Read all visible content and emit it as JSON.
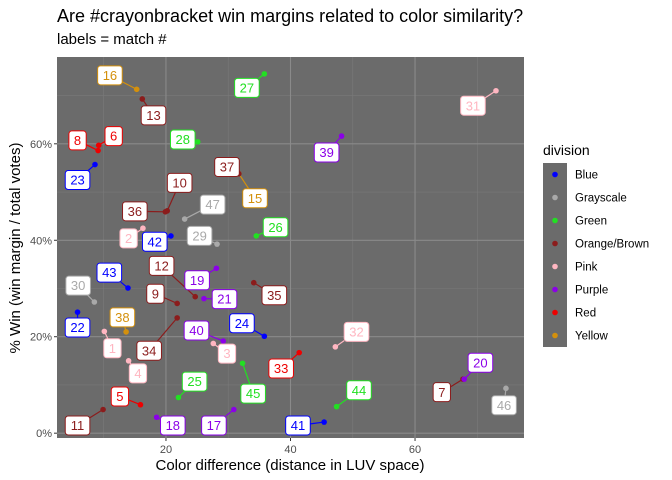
{
  "chart_data": {
    "type": "scatter",
    "title": "Are #crayonbracket win margins related to color similarity?",
    "subtitle": "labels = match #",
    "xlabel": "Color difference (distance in LUV space)",
    "ylabel": "% Win (win margin / total votes)",
    "xlim": [
      2.5,
      77.5
    ],
    "ylim": [
      -1,
      78
    ],
    "x_ticks": [
      20,
      40,
      60
    ],
    "x_tick_labels": [
      "20",
      "40",
      "60"
    ],
    "y_ticks": [
      0,
      20,
      40,
      60
    ],
    "y_tick_labels": [
      "0%",
      "20%",
      "40%",
      "60%"
    ],
    "grid": true,
    "legend": {
      "title": "division",
      "position": "right",
      "items": [
        {
          "name": "Blue",
          "color": "#0000ff"
        },
        {
          "name": "Grayscale",
          "color": "#a9a9a9"
        },
        {
          "name": "Green",
          "color": "#22e022"
        },
        {
          "name": "Orange/Brown",
          "color": "#8b1c1c"
        },
        {
          "name": "Pink",
          "color": "#ffb6c1"
        },
        {
          "name": "Purple",
          "color": "#8b00e8"
        },
        {
          "name": "Red",
          "color": "#ee0000"
        },
        {
          "name": "Yellow",
          "color": "#d4900c"
        }
      ]
    },
    "points": [
      {
        "match": "1",
        "division": "Pink",
        "x": 10.1,
        "y": 21.1,
        "lx": 11.4,
        "ly": 17.6
      },
      {
        "match": "2",
        "division": "Pink",
        "x": 16.3,
        "y": 42.5,
        "lx": 14.0,
        "ly": 40.4
      },
      {
        "match": "3",
        "division": "Pink",
        "x": 27.6,
        "y": 18.6,
        "lx": 29.8,
        "ly": 16.5
      },
      {
        "match": "4",
        "division": "Pink",
        "x": 14.0,
        "y": 15.0,
        "lx": 15.5,
        "ly": 12.4
      },
      {
        "match": "5",
        "division": "Red",
        "x": 15.9,
        "y": 5.9,
        "lx": 12.6,
        "ly": 7.6
      },
      {
        "match": "6",
        "division": "Red",
        "x": 9.2,
        "y": 59.7,
        "lx": 11.6,
        "ly": 61.6
      },
      {
        "match": "7",
        "division": "Orange/Brown",
        "x": 67.7,
        "y": 11.2,
        "lx": 64.3,
        "ly": 8.5
      },
      {
        "match": "8",
        "division": "Red",
        "x": 9.1,
        "y": 58.6,
        "lx": 5.8,
        "ly": 60.7
      },
      {
        "match": "9",
        "division": "Orange/Brown",
        "x": 21.8,
        "y": 26.9,
        "lx": 18.3,
        "ly": 28.9
      },
      {
        "match": "10",
        "division": "Orange/Brown",
        "x": 20.2,
        "y": 46.1,
        "lx": 22.2,
        "ly": 51.9
      },
      {
        "match": "11",
        "division": "Orange/Brown",
        "x": 9.9,
        "y": 4.9,
        "lx": 5.8,
        "ly": 1.6
      },
      {
        "match": "12",
        "division": "Orange/Brown",
        "x": 24.7,
        "y": 28.3,
        "lx": 19.3,
        "ly": 34.7
      },
      {
        "match": "13",
        "division": "Orange/Brown",
        "x": 16.2,
        "y": 69.3,
        "lx": 18.0,
        "ly": 65.9
      },
      {
        "match": "15",
        "division": "Yellow",
        "x": 31.7,
        "y": 53.8,
        "lx": 34.3,
        "ly": 48.7
      },
      {
        "match": "16",
        "division": "Yellow",
        "x": 15.3,
        "y": 71.3,
        "lx": 11.0,
        "ly": 74.2
      },
      {
        "match": "17",
        "division": "Purple",
        "x": 30.9,
        "y": 4.9,
        "lx": 27.7,
        "ly": 1.6
      },
      {
        "match": "18",
        "division": "Purple",
        "x": 18.5,
        "y": 3.3,
        "lx": 21.1,
        "ly": 1.6
      },
      {
        "match": "19",
        "division": "Purple",
        "x": 28.1,
        "y": 34.2,
        "lx": 25.0,
        "ly": 31.7
      },
      {
        "match": "20",
        "division": "Purple",
        "x": 67.9,
        "y": 11.2,
        "lx": 70.5,
        "ly": 14.6
      },
      {
        "match": "21",
        "division": "Purple",
        "x": 26.1,
        "y": 27.9,
        "lx": 29.4,
        "ly": 27.8
      },
      {
        "match": "22",
        "division": "Blue",
        "x": 5.8,
        "y": 25.1,
        "lx": 5.8,
        "ly": 21.9
      },
      {
        "match": "23",
        "division": "Blue",
        "x": 8.6,
        "y": 55.7,
        "lx": 5.8,
        "ly": 52.5
      },
      {
        "match": "24",
        "division": "Blue",
        "x": 35.8,
        "y": 20.1,
        "lx": 32.2,
        "ly": 22.8
      },
      {
        "match": "25",
        "division": "Green",
        "x": 22.0,
        "y": 7.4,
        "lx": 24.6,
        "ly": 10.7
      },
      {
        "match": "26",
        "division": "Green",
        "x": 34.5,
        "y": 40.9,
        "lx": 37.6,
        "ly": 42.7
      },
      {
        "match": "27",
        "division": "Green",
        "x": 35.8,
        "y": 74.5,
        "lx": 33.0,
        "ly": 71.6
      },
      {
        "match": "28",
        "division": "Green",
        "x": 25.1,
        "y": 60.4,
        "lx": 22.7,
        "ly": 60.9
      },
      {
        "match": "29",
        "division": "Grayscale",
        "x": 28.2,
        "y": 39.2,
        "lx": 25.4,
        "ly": 40.9
      },
      {
        "match": "30",
        "division": "Grayscale",
        "x": 8.5,
        "y": 27.2,
        "lx": 5.9,
        "ly": 30.6
      },
      {
        "match": "32",
        "division": "Pink",
        "x": 47.2,
        "y": 17.9,
        "lx": 50.6,
        "ly": 21.0
      },
      {
        "match": "33",
        "division": "Red",
        "x": 41.4,
        "y": 16.7,
        "lx": 38.5,
        "ly": 13.4
      },
      {
        "match": "34",
        "division": "Orange/Brown",
        "x": 21.8,
        "y": 23.9,
        "lx": 17.3,
        "ly": 17.1
      },
      {
        "match": "35",
        "division": "Orange/Brown",
        "x": 34.1,
        "y": 31.2,
        "lx": 37.4,
        "ly": 28.6
      },
      {
        "match": "36",
        "division": "Orange/Brown",
        "x": 19.9,
        "y": 45.9,
        "lx": 15.0,
        "ly": 46.0
      },
      {
        "match": "37",
        "division": "Orange/Brown",
        "x": 31.7,
        "y": 53.8,
        "lx": 29.8,
        "ly": 55.2
      },
      {
        "match": "38",
        "division": "Yellow",
        "x": 13.6,
        "y": 21.0,
        "lx": 13.0,
        "ly": 24.0
      },
      {
        "match": "39",
        "division": "Purple",
        "x": 48.2,
        "y": 61.6,
        "lx": 45.8,
        "ly": 58.2
      },
      {
        "match": "40",
        "division": "Purple",
        "x": 29.2,
        "y": 19.1,
        "lx": 24.9,
        "ly": 21.3
      },
      {
        "match": "41",
        "division": "Blue",
        "x": 45.4,
        "y": 2.3,
        "lx": 41.2,
        "ly": 1.6
      },
      {
        "match": "42",
        "division": "Blue",
        "x": 20.8,
        "y": 40.9,
        "lx": 18.2,
        "ly": 39.7
      },
      {
        "match": "43",
        "division": "Blue",
        "x": 13.9,
        "y": 30.1,
        "lx": 10.9,
        "ly": 33.3
      },
      {
        "match": "44",
        "division": "Green",
        "x": 47.4,
        "y": 5.5,
        "lx": 51.0,
        "ly": 8.9
      },
      {
        "match": "45",
        "division": "Green",
        "x": 32.3,
        "y": 14.5,
        "lx": 34.0,
        "ly": 8.2
      },
      {
        "match": "46",
        "division": "Grayscale",
        "x": 74.6,
        "y": 9.3,
        "lx": 74.3,
        "ly": 5.8
      },
      {
        "match": "47",
        "division": "Grayscale",
        "x": 23.0,
        "y": 44.4,
        "lx": 27.5,
        "ly": 47.4
      },
      {
        "match": "31",
        "division": "Pink",
        "x": 73.0,
        "y": 71.0,
        "lx": 69.3,
        "ly": 67.9
      }
    ]
  }
}
